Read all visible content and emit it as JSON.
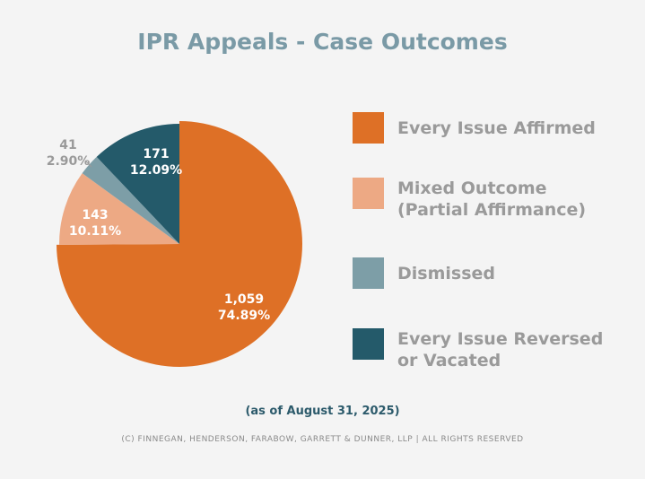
{
  "chart_data": {
    "type": "pie",
    "title": "IPR Appeals - Case Outcomes",
    "start_angle": "12 o'clock, clockwise",
    "legend_position": "right",
    "slices": [
      {
        "name": "Every Issue Affirmed",
        "count": 1059,
        "count_label": "1,059",
        "percent": 74.89,
        "percent_label": "74.89%",
        "color": "#de7026"
      },
      {
        "name": "Mixed Outcome (Partial Affirmance)",
        "count": 143,
        "count_label": "143",
        "percent": 10.11,
        "percent_label": "10.11%",
        "color": "#eda984"
      },
      {
        "name": "Dismissed",
        "count": 41,
        "count_label": "41",
        "percent": 2.9,
        "percent_label": "2.90%",
        "color": "#7d9ea7"
      },
      {
        "name": "Every Issue Reversed or Vacated",
        "count": 171,
        "count_label": "171",
        "percent": 12.09,
        "percent_label": "12.09%",
        "color": "#245a6a"
      }
    ],
    "legend": [
      "Every Issue Affirmed",
      "Mixed Outcome\n(Partial Affirmance)",
      "Dismissed",
      "Every Issue Reversed\nor Vacated"
    ]
  },
  "footnote": "(as of August 31, 2025)",
  "copyright": "(C) FINNEGAN, HENDERSON, FARABOW, GARRETT & DUNNER, LLP | ALL RIGHTS RESERVED"
}
